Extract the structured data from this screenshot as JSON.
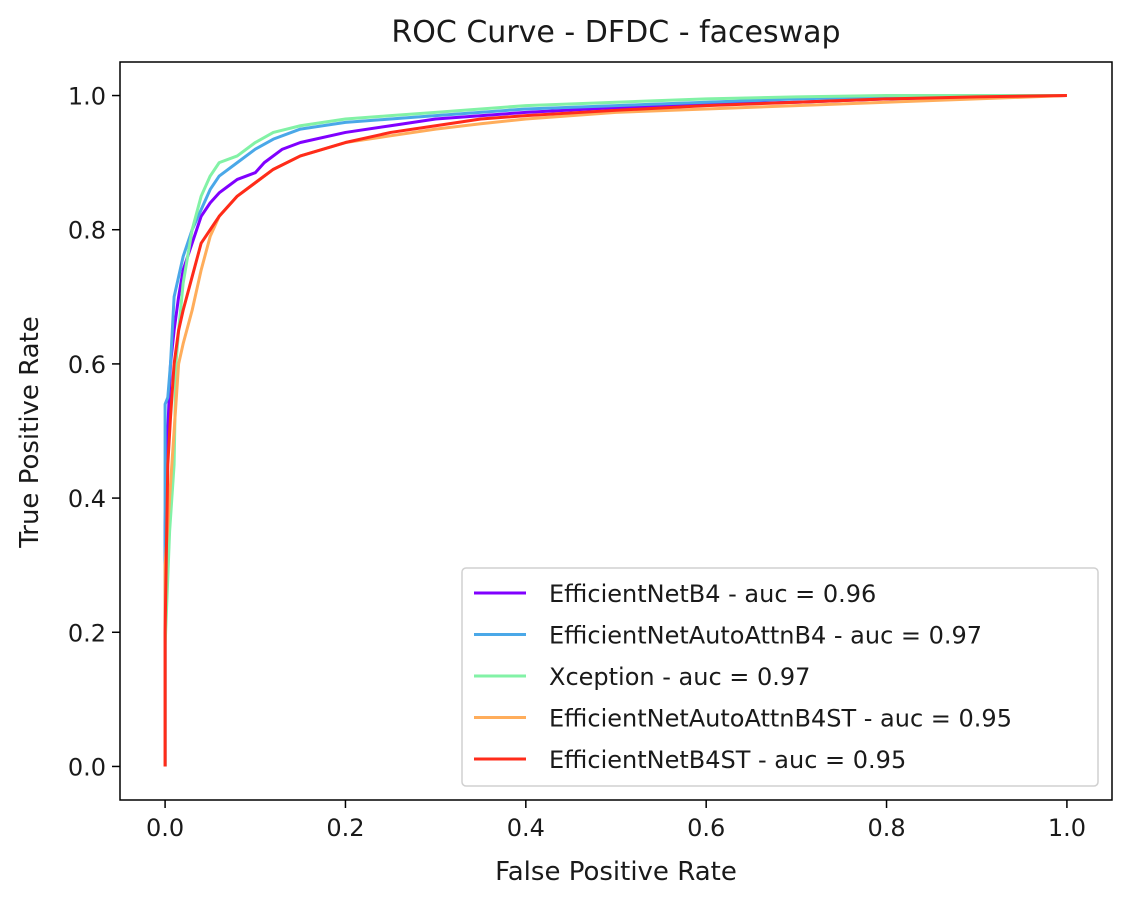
{
  "chart_data": {
    "type": "line",
    "title": "ROC Curve - DFDC - faceswap",
    "xlabel": "False Positive Rate",
    "ylabel": "True Positive Rate",
    "xlim": [
      -0.05,
      1.05
    ],
    "ylim": [
      -0.05,
      1.05
    ],
    "xticks": [
      0.0,
      0.2,
      0.4,
      0.6,
      0.8,
      1.0
    ],
    "yticks": [
      0.0,
      0.2,
      0.4,
      0.6,
      0.8,
      1.0
    ],
    "xtick_labels": [
      "0.0",
      "0.2",
      "0.4",
      "0.6",
      "0.8",
      "1.0"
    ],
    "ytick_labels": [
      "0.0",
      "0.2",
      "0.4",
      "0.6",
      "0.8",
      "1.0"
    ],
    "grid": false,
    "legend_position": "lower-right",
    "series": [
      {
        "name": "EfficientNetB4 - auc = 0.96",
        "color": "#8000ff",
        "points": [
          [
            0,
            0
          ],
          [
            0,
            0.36
          ],
          [
            0.003,
            0.5
          ],
          [
            0.006,
            0.6
          ],
          [
            0.01,
            0.65
          ],
          [
            0.015,
            0.7
          ],
          [
            0.02,
            0.74
          ],
          [
            0.03,
            0.78
          ],
          [
            0.04,
            0.82
          ],
          [
            0.05,
            0.84
          ],
          [
            0.06,
            0.855
          ],
          [
            0.07,
            0.865
          ],
          [
            0.08,
            0.875
          ],
          [
            0.09,
            0.88
          ],
          [
            0.1,
            0.885
          ],
          [
            0.11,
            0.9
          ],
          [
            0.13,
            0.92
          ],
          [
            0.15,
            0.93
          ],
          [
            0.2,
            0.945
          ],
          [
            0.25,
            0.955
          ],
          [
            0.3,
            0.965
          ],
          [
            0.4,
            0.975
          ],
          [
            0.5,
            0.982
          ],
          [
            0.6,
            0.987
          ],
          [
            0.7,
            0.99
          ],
          [
            0.8,
            0.995
          ],
          [
            0.9,
            0.998
          ],
          [
            1.0,
            1.0
          ]
        ]
      },
      {
        "name": "EfficientNetAutoAttnB4 - auc = 0.97",
        "color": "#4aa8e8",
        "points": [
          [
            0,
            0
          ],
          [
            0,
            0.54
          ],
          [
            0.003,
            0.55
          ],
          [
            0.006,
            0.6
          ],
          [
            0.01,
            0.7
          ],
          [
            0.015,
            0.73
          ],
          [
            0.02,
            0.76
          ],
          [
            0.03,
            0.8
          ],
          [
            0.04,
            0.83
          ],
          [
            0.05,
            0.86
          ],
          [
            0.06,
            0.88
          ],
          [
            0.08,
            0.9
          ],
          [
            0.1,
            0.92
          ],
          [
            0.12,
            0.935
          ],
          [
            0.15,
            0.95
          ],
          [
            0.2,
            0.96
          ],
          [
            0.25,
            0.965
          ],
          [
            0.3,
            0.97
          ],
          [
            0.4,
            0.98
          ],
          [
            0.5,
            0.985
          ],
          [
            0.6,
            0.99
          ],
          [
            0.7,
            0.995
          ],
          [
            0.8,
            0.998
          ],
          [
            1.0,
            1.0
          ]
        ]
      },
      {
        "name": "Xception - auc = 0.97",
        "color": "#82f2a6",
        "points": [
          [
            0,
            0
          ],
          [
            0,
            0.18
          ],
          [
            0.005,
            0.35
          ],
          [
            0.01,
            0.45
          ],
          [
            0.012,
            0.6
          ],
          [
            0.015,
            0.65
          ],
          [
            0.02,
            0.72
          ],
          [
            0.03,
            0.8
          ],
          [
            0.04,
            0.85
          ],
          [
            0.05,
            0.88
          ],
          [
            0.06,
            0.9
          ],
          [
            0.08,
            0.91
          ],
          [
            0.1,
            0.93
          ],
          [
            0.12,
            0.945
          ],
          [
            0.15,
            0.955
          ],
          [
            0.2,
            0.965
          ],
          [
            0.25,
            0.97
          ],
          [
            0.3,
            0.975
          ],
          [
            0.4,
            0.985
          ],
          [
            0.5,
            0.99
          ],
          [
            0.6,
            0.995
          ],
          [
            0.7,
            0.998
          ],
          [
            0.8,
            1.0
          ],
          [
            1.0,
            1.0
          ]
        ]
      },
      {
        "name": "EfficientNetAutoAttnB4ST - auc = 0.95",
        "color": "#ffad5b",
        "points": [
          [
            0,
            0
          ],
          [
            0,
            0.3
          ],
          [
            0.005,
            0.4
          ],
          [
            0.01,
            0.5
          ],
          [
            0.015,
            0.6
          ],
          [
            0.02,
            0.63
          ],
          [
            0.03,
            0.68
          ],
          [
            0.04,
            0.74
          ],
          [
            0.05,
            0.79
          ],
          [
            0.06,
            0.82
          ],
          [
            0.08,
            0.85
          ],
          [
            0.1,
            0.87
          ],
          [
            0.12,
            0.89
          ],
          [
            0.15,
            0.91
          ],
          [
            0.2,
            0.93
          ],
          [
            0.25,
            0.94
          ],
          [
            0.3,
            0.95
          ],
          [
            0.35,
            0.958
          ],
          [
            0.4,
            0.965
          ],
          [
            0.5,
            0.975
          ],
          [
            0.6,
            0.98
          ],
          [
            0.7,
            0.985
          ],
          [
            0.8,
            0.99
          ],
          [
            0.9,
            0.995
          ],
          [
            1.0,
            1.0
          ]
        ]
      },
      {
        "name": "EfficientNetB4ST - auc = 0.95",
        "color": "#ff2b1a",
        "points": [
          [
            0,
            0
          ],
          [
            0,
            0.2
          ],
          [
            0.003,
            0.45
          ],
          [
            0.006,
            0.52
          ],
          [
            0.01,
            0.6
          ],
          [
            0.015,
            0.65
          ],
          [
            0.02,
            0.68
          ],
          [
            0.03,
            0.73
          ],
          [
            0.04,
            0.78
          ],
          [
            0.05,
            0.8
          ],
          [
            0.06,
            0.82
          ],
          [
            0.08,
            0.85
          ],
          [
            0.1,
            0.87
          ],
          [
            0.12,
            0.89
          ],
          [
            0.15,
            0.91
          ],
          [
            0.2,
            0.93
          ],
          [
            0.25,
            0.945
          ],
          [
            0.3,
            0.955
          ],
          [
            0.35,
            0.965
          ],
          [
            0.4,
            0.97
          ],
          [
            0.5,
            0.978
          ],
          [
            0.6,
            0.985
          ],
          [
            0.7,
            0.99
          ],
          [
            0.8,
            0.995
          ],
          [
            0.9,
            0.998
          ],
          [
            1.0,
            1.0
          ]
        ]
      }
    ]
  }
}
